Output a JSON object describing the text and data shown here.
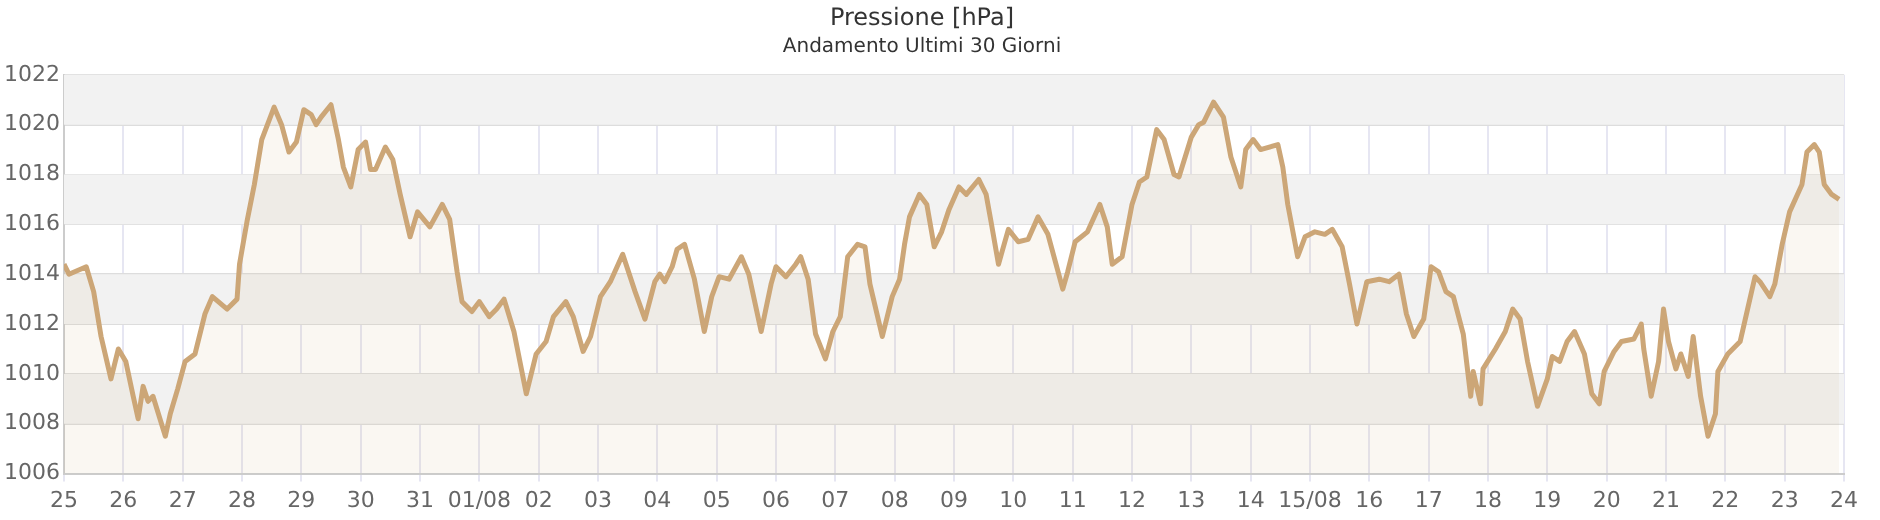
{
  "chart_data": {
    "type": "area",
    "title": "Pressione [hPa]",
    "subtitle": "Andamento Ultimi 30 Giorni",
    "x": [
      "--07-25T00:00",
      "--07-25T02:00",
      "--07-25T09:00",
      "--07-25T12:00",
      "--07-25T15:00",
      "--07-25T19:00",
      "--07-25T22:00",
      "--07-26T01:00",
      "--07-26T04:00",
      "--07-26T06:00",
      "--07-26T08:00",
      "--07-26T10:00",
      "--07-26T12:00",
      "--07-26T17:00",
      "--07-26T19:00",
      "--07-26T22:00",
      "--07-27T01:00",
      "--07-27T05:00",
      "--07-27T09:00",
      "--07-27T12:00",
      "--07-27T18:00",
      "--07-27T22:00",
      "--07-27T23:00",
      "--07-28T02:00",
      "--07-28T05:00",
      "--07-28T08:00",
      "--07-28T13:00",
      "--07-28T16:00",
      "--07-28T19:00",
      "--07-28T22:00",
      "--07-29T01:00",
      "--07-29T04:00",
      "--07-29T06:00",
      "--07-29T08:00",
      "--07-29T12:00",
      "--07-29T15:00",
      "--07-29T17:00",
      "--07-29T20:00",
      "--07-29T23:00",
      "--07-30T02:00",
      "--07-30T04:00",
      "--07-30T06:00",
      "--07-30T10:00",
      "--07-30T13:00",
      "--07-30T16:00",
      "--07-30T20:00",
      "--07-30T23:00",
      "--07-31T04:00",
      "--07-31T09:00",
      "--07-31T12:00",
      "--07-31T15:00",
      "--07-31T17:00",
      "--07-31T21:00",
      "--08-01T00:00",
      "--08-01T04:00",
      "--08-01T07:00",
      "--08-01T10:00",
      "--08-01T14:00",
      "--08-01T19:00",
      "--08-01T23:00",
      "--08-02T03:00",
      "--08-02T06:00",
      "--08-02T11:00",
      "--08-02T14:00",
      "--08-02T18:00",
      "--08-02T21:00",
      "--08-03T01:00",
      "--08-03T05:00",
      "--08-03T10:00",
      "--08-03T15:00",
      "--08-03T19:00",
      "--08-03T23:00",
      "--08-04T01:00",
      "--08-04T03:00",
      "--08-04T06:00",
      "--08-04T08:00",
      "--08-04T11:00",
      "--08-04T15:00",
      "--08-04T19:00",
      "--08-04T22:00",
      "--08-05T01:00",
      "--08-05T05:00",
      "--08-05T10:00",
      "--08-05T13:00",
      "--08-05T18:00",
      "--08-05T22:00",
      "--08-06T00:00",
      "--08-06T04:00",
      "--08-06T08:00",
      "--08-06T10:00",
      "--08-06T13:00",
      "--08-06T16:00",
      "--08-06T20:00",
      "--08-06T23:00",
      "--08-07T02:00",
      "--08-07T05:00",
      "--08-07T09:00",
      "--08-07T12:00",
      "--08-07T14:00",
      "--08-07T19:00",
      "--08-07T23:00",
      "--08-08T02:00",
      "--08-08T04:00",
      "--08-08T06:00",
      "--08-08T10:00",
      "--08-08T13:00",
      "--08-08T16:00",
      "--08-08T19:00",
      "--08-08T22:00",
      "--08-09T02:00",
      "--08-09T05:00",
      "--08-09T10:00",
      "--08-09T13:00",
      "--08-09T15:00",
      "--08-09T18:00",
      "--08-09T22:00",
      "--08-10T02:00",
      "--08-10T06:00",
      "--08-10T10:00",
      "--08-10T14:00",
      "--08-10T20:00",
      "--08-10T22:00",
      "--08-11T01:00",
      "--08-11T06:00",
      "--08-11T11:00",
      "--08-11T14:00",
      "--08-11T16:00",
      "--08-11T20:00",
      "--08-12T00:00",
      "--08-12T03:00",
      "--08-12T06:00",
      "--08-12T10:00",
      "--08-12T13:00",
      "--08-12T17:00",
      "--08-12T19:00",
      "--08-13T00:00",
      "--08-13T03:00",
      "--08-13T05:00",
      "--08-13T09:00",
      "--08-13T13:00",
      "--08-13T16:00",
      "--08-13T20:00",
      "--08-13T22:00",
      "--08-14T01:00",
      "--08-14T04:00",
      "--08-14T11:00",
      "--08-14T13:00",
      "--08-14T15:00",
      "--08-14T19:00",
      "--08-14T22:00",
      "--08-15T02:00",
      "--08-15T06:00",
      "--08-15T09:00",
      "--08-15T13:00",
      "--08-15T16:00",
      "--08-15T19:00",
      "--08-15T23:00",
      "--08-16T04:00",
      "--08-16T08:00",
      "--08-16T12:00",
      "--08-16T15:00",
      "--08-16T18:00",
      "--08-16T22:00",
      "--08-17T01:00",
      "--08-17T04:00",
      "--08-17T07:00",
      "--08-17T10:00",
      "--08-17T14:00",
      "--08-17T17:00",
      "--08-17T18:00",
      "--08-17T21:00",
      "--08-17T22:00",
      "--08-18T03:00",
      "--08-18T07:00",
      "--08-18T10:00",
      "--08-18T13:00",
      "--08-18T16:00",
      "--08-18T20:00",
      "--08-19T00:00",
      "--08-19T02:00",
      "--08-19T05:00",
      "--08-19T08:00",
      "--08-19T11:00",
      "--08-19T15:00",
      "--08-19T18:00",
      "--08-19T21:00",
      "--08-19T23:00",
      "--08-20T03:00",
      "--08-20T06:00",
      "--08-20T11:00",
      "--08-20T14:00",
      "--08-20T15:00",
      "--08-20T18:00",
      "--08-20T21:00",
      "--08-20T23:00",
      "--08-21T01:00",
      "--08-21T04:00",
      "--08-21T06:00",
      "--08-21T09:00",
      "--08-21T11:00",
      "--08-21T14:00",
      "--08-21T17:00",
      "--08-21T20:00",
      "--08-21T21:00",
      "--08-22T01:00",
      "--08-22T06:00",
      "--08-22T09:00",
      "--08-22T12:00",
      "--08-22T14:00",
      "--08-22T18:00",
      "--08-22T20:00",
      "--08-22T23:00",
      "--08-23T02:00",
      "--08-23T07:00",
      "--08-23T09:00",
      "--08-23T12:00",
      "--08-23T14:00",
      "--08-23T16:00",
      "--08-23T19:00",
      "--08-23T22:00"
    ],
    "series": [
      {
        "color": "#cca677",
        "values": [
          1014.4,
          1014.0,
          1014.3,
          1013.3,
          1011.5,
          1009.8,
          1011.0,
          1010.5,
          1009.1,
          1008.2,
          1009.5,
          1008.9,
          1009.1,
          1007.5,
          1008.4,
          1009.4,
          1010.5,
          1010.8,
          1012.4,
          1013.1,
          1012.6,
          1013.0,
          1014.4,
          1016.1,
          1017.6,
          1019.4,
          1020.7,
          1020.0,
          1018.9,
          1019.3,
          1020.6,
          1020.4,
          1020.0,
          1020.3,
          1020.8,
          1019.4,
          1018.3,
          1017.5,
          1019.0,
          1019.3,
          1018.2,
          1018.2,
          1019.1,
          1018.6,
          1017.2,
          1015.5,
          1016.5,
          1015.9,
          1016.8,
          1016.2,
          1014.1,
          1012.9,
          1012.5,
          1012.9,
          1012.3,
          1012.6,
          1013.0,
          1011.7,
          1009.2,
          1010.8,
          1011.3,
          1012.3,
          1012.9,
          1012.3,
          1010.9,
          1011.5,
          1013.1,
          1013.7,
          1014.8,
          1013.3,
          1012.2,
          1013.7,
          1014.0,
          1013.7,
          1014.3,
          1015.0,
          1015.2,
          1013.8,
          1011.7,
          1013.1,
          1013.9,
          1013.8,
          1014.7,
          1014.0,
          1011.7,
          1013.6,
          1014.3,
          1013.9,
          1014.4,
          1014.7,
          1013.8,
          1011.6,
          1010.6,
          1011.7,
          1012.3,
          1014.7,
          1015.2,
          1015.1,
          1013.6,
          1011.5,
          1013.1,
          1013.8,
          1015.2,
          1016.3,
          1017.2,
          1016.8,
          1015.1,
          1015.7,
          1016.6,
          1017.5,
          1017.2,
          1017.8,
          1017.2,
          1016.1,
          1014.4,
          1015.8,
          1015.3,
          1015.4,
          1016.3,
          1015.6,
          1013.4,
          1014.1,
          1015.3,
          1015.7,
          1016.8,
          1015.9,
          1014.4,
          1014.7,
          1016.8,
          1017.7,
          1017.9,
          1019.8,
          1019.4,
          1018.0,
          1017.9,
          1019.5,
          1020.0,
          1020.1,
          1020.9,
          1020.3,
          1018.7,
          1017.5,
          1019.0,
          1019.4,
          1019.0,
          1019.2,
          1018.3,
          1016.8,
          1014.7,
          1015.5,
          1015.7,
          1015.6,
          1015.8,
          1015.1,
          1013.6,
          1012.0,
          1013.7,
          1013.8,
          1013.7,
          1014.0,
          1012.4,
          1011.5,
          1012.2,
          1014.3,
          1014.1,
          1013.3,
          1013.1,
          1011.6,
          1009.1,
          1010.1,
          1008.8,
          1010.2,
          1011.0,
          1011.7,
          1012.6,
          1012.2,
          1010.5,
          1008.7,
          1009.8,
          1010.7,
          1010.5,
          1011.3,
          1011.7,
          1010.8,
          1009.2,
          1008.8,
          1010.1,
          1010.9,
          1011.3,
          1011.4,
          1012.0,
          1011.0,
          1009.1,
          1010.5,
          1012.6,
          1011.3,
          1010.2,
          1010.8,
          1009.9,
          1011.5,
          1009.1,
          1007.5,
          1008.4,
          1010.1,
          1010.8,
          1011.3,
          1012.6,
          1013.9,
          1013.7,
          1013.1,
          1013.6,
          1015.2,
          1016.5,
          1017.6,
          1018.9,
          1019.2,
          1018.9,
          1017.6,
          1017.2,
          1017.0
        ]
      }
    ],
    "xlim": [
      "--07-25",
      "--08-24"
    ],
    "xticks": [
      {
        "value": "--07-25",
        "label": "25"
      },
      {
        "value": "--07-26",
        "label": "26"
      },
      {
        "value": "--07-27",
        "label": "27"
      },
      {
        "value": "--07-28",
        "label": "28"
      },
      {
        "value": "--07-29",
        "label": "29"
      },
      {
        "value": "--07-30",
        "label": "30"
      },
      {
        "value": "--07-31",
        "label": "31"
      },
      {
        "value": "--08-01",
        "label": "01/08"
      },
      {
        "value": "--08-02",
        "label": "02"
      },
      {
        "value": "--08-03",
        "label": "03"
      },
      {
        "value": "--08-04",
        "label": "04"
      },
      {
        "value": "--08-05",
        "label": "05"
      },
      {
        "value": "--08-06",
        "label": "06"
      },
      {
        "value": "--08-07",
        "label": "07"
      },
      {
        "value": "--08-08",
        "label": "08"
      },
      {
        "value": "--08-09",
        "label": "09"
      },
      {
        "value": "--08-10",
        "label": "10"
      },
      {
        "value": "--08-11",
        "label": "11"
      },
      {
        "value": "--08-12",
        "label": "12"
      },
      {
        "value": "--08-13",
        "label": "13"
      },
      {
        "value": "--08-14",
        "label": "14"
      },
      {
        "value": "--08-15",
        "label": "15/08"
      },
      {
        "value": "--08-16",
        "label": "16"
      },
      {
        "value": "--08-17",
        "label": "17"
      },
      {
        "value": "--08-18",
        "label": "18"
      },
      {
        "value": "--08-19",
        "label": "19"
      },
      {
        "value": "--08-20",
        "label": "20"
      },
      {
        "value": "--08-21",
        "label": "21"
      },
      {
        "value": "--08-22",
        "label": "22"
      },
      {
        "value": "--08-23",
        "label": "23"
      },
      {
        "value": "--08-24",
        "label": "24"
      }
    ],
    "ylim": [
      1006,
      1022
    ],
    "yticks": [
      1006,
      1008,
      1010,
      1012,
      1014,
      1016,
      1018,
      1020,
      1022
    ],
    "grid": true,
    "bands": [
      {
        "axis": "y",
        "from": 1008,
        "to": 1010,
        "color": "#f2f2f2"
      },
      {
        "axis": "y",
        "from": 1012,
        "to": 1014,
        "color": "#f2f2f2"
      },
      {
        "axis": "y",
        "from": 1016,
        "to": 1018,
        "color": "#f2f2f2"
      },
      {
        "axis": "y",
        "from": 1020,
        "to": 1022,
        "color": "#f2f2f2"
      }
    ]
  }
}
